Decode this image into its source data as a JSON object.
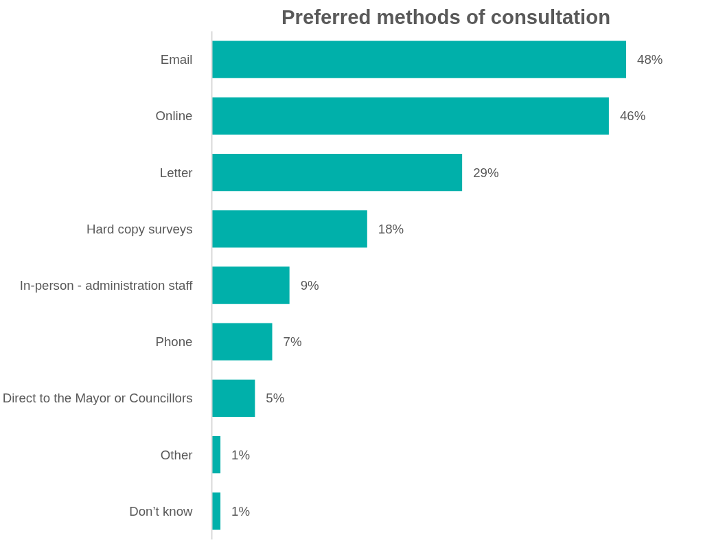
{
  "chart_data": {
    "type": "bar",
    "orientation": "horizontal",
    "title": "Preferred methods of consultation",
    "categories": [
      "Email",
      "Online",
      "Letter",
      "Hard copy surveys",
      "In-person - administration staff",
      "Phone",
      "Direct to the Mayor or Councillors",
      "Other",
      "Don’t know"
    ],
    "values": [
      48,
      46,
      29,
      18,
      9,
      7,
      5,
      1,
      1
    ],
    "value_labels": [
      "48%",
      "46%",
      "29%",
      "18%",
      "9%",
      "7%",
      "5%",
      "1%",
      "1%"
    ],
    "color": "#00b0aa",
    "grid": false
  }
}
